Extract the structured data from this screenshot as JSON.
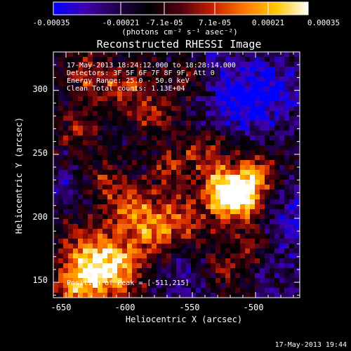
{
  "colorbar": {
    "tick_labels": [
      "-0.00035",
      "-0.00021",
      "-7.1e-05",
      "7.1e-05",
      "0.00021",
      "0.00035"
    ],
    "unit_label": "(photons cm⁻² s⁻¹ asec⁻²)",
    "colormap": [
      "#0000ff",
      "#4000b0",
      "#20004a",
      "#000000",
      "#500010",
      "#c81e00",
      "#ff7800",
      "#ffc800",
      "#ffffff"
    ]
  },
  "plot": {
    "title": "Reconstructed RHESSI Image",
    "overlay_lines": [
      "17-May-2013 18:24:12.000 to 18:28:14.000",
      "Detectors: 3F 5F 6F 7F 8F 9F, Att 0",
      "Energy Range: 25.0 - 50.0 keV",
      "Clean    Total counts: 1.13E+04"
    ],
    "peak_text": "Position of Peak = [-511,215]",
    "x_label": "Heliocentric X (arcsec)",
    "y_label": "Heliocentric Y (arcsec)",
    "x_ticks": [
      "-650",
      "-600",
      "-550",
      "-500"
    ],
    "y_ticks": [
      "150",
      "200",
      "250",
      "300"
    ],
    "xlim": [
      -660,
      -465
    ],
    "ylim": [
      138,
      330
    ],
    "peak": [
      -511,
      215
    ]
  },
  "footer": {
    "timestamp": "17-May-2013 19:44"
  }
}
